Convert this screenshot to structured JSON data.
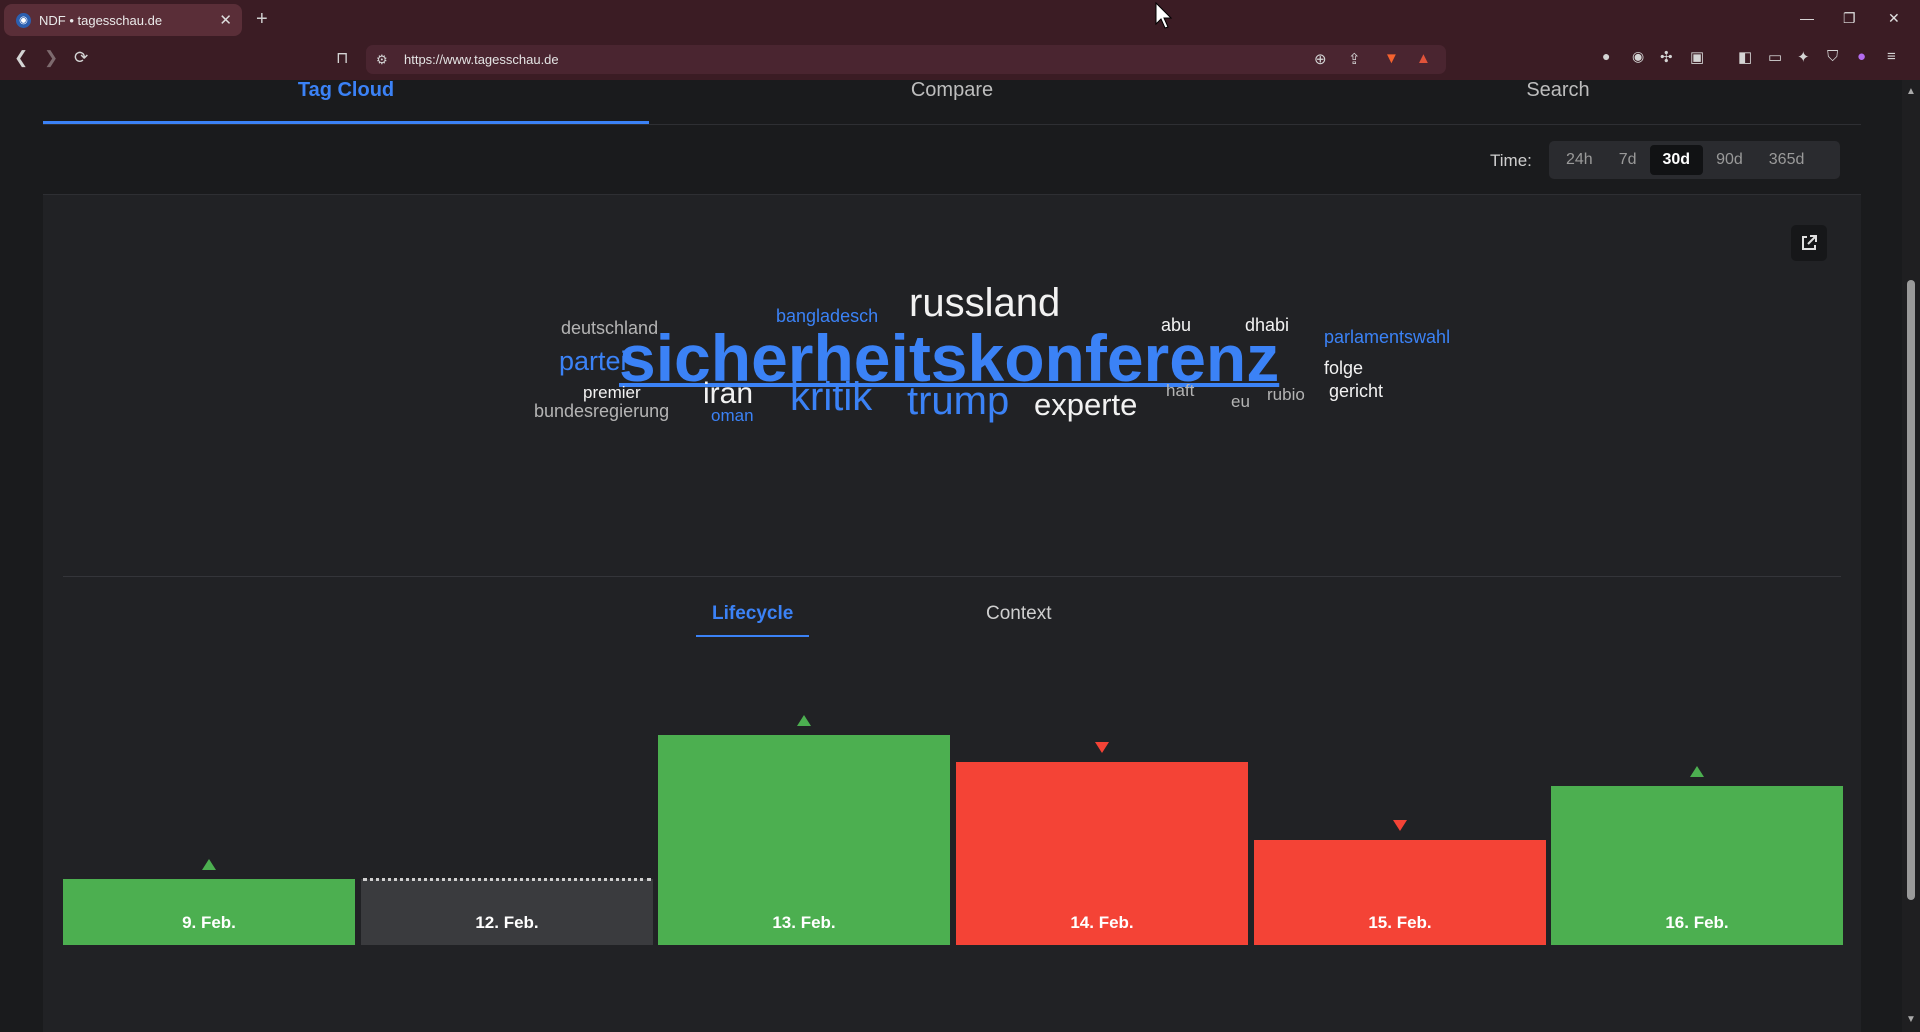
{
  "browser": {
    "tab_title": "NDF • tagesschau.de",
    "tab_favicon": "tagesschau-icon",
    "url": "https://www.tagesschau.de"
  },
  "nav": {
    "tabs": [
      {
        "label": "Tag Cloud",
        "active": true
      },
      {
        "label": "Compare",
        "active": false
      },
      {
        "label": "Search",
        "active": false
      }
    ]
  },
  "time_filter": {
    "label": "Time:",
    "options": [
      {
        "label": "24h",
        "active": false
      },
      {
        "label": "7d",
        "active": false
      },
      {
        "label": "30d",
        "active": true
      },
      {
        "label": "90d",
        "active": false
      },
      {
        "label": "365d",
        "active": false
      }
    ]
  },
  "tag_cloud": {
    "words": [
      {
        "text": "sicherheitskonferenz",
        "emphasis": "primary",
        "underlined": true
      },
      {
        "text": "russland"
      },
      {
        "text": "trump"
      },
      {
        "text": "kritik"
      },
      {
        "text": "experte"
      },
      {
        "text": "iran"
      },
      {
        "text": "partei"
      },
      {
        "text": "deutschland"
      },
      {
        "text": "bangladesch"
      },
      {
        "text": "abu"
      },
      {
        "text": "dhabi"
      },
      {
        "text": "parlamentswahl"
      },
      {
        "text": "folge"
      },
      {
        "text": "premier"
      },
      {
        "text": "bundesregierung"
      },
      {
        "text": "oman"
      },
      {
        "text": "haft"
      },
      {
        "text": "eu"
      },
      {
        "text": "rubio"
      },
      {
        "text": "gericht"
      }
    ]
  },
  "subtabs": [
    {
      "label": "Lifecycle",
      "active": true
    },
    {
      "label": "Context",
      "active": false
    }
  ],
  "colors": {
    "accent": "#3b82f6",
    "up": "#4caf50",
    "down": "#f44336",
    "neutral": "#3a3b3e"
  },
  "chart_data": {
    "type": "bar",
    "categories": [
      "9. Feb.",
      "12. Feb.",
      "13. Feb.",
      "14. Feb.",
      "15. Feb.",
      "16. Feb."
    ],
    "values": [
      22,
      22,
      70,
      61,
      35,
      53
    ],
    "trend": [
      "up",
      "none",
      "up",
      "down",
      "down",
      "up"
    ],
    "ylim": [
      0,
      100
    ]
  }
}
